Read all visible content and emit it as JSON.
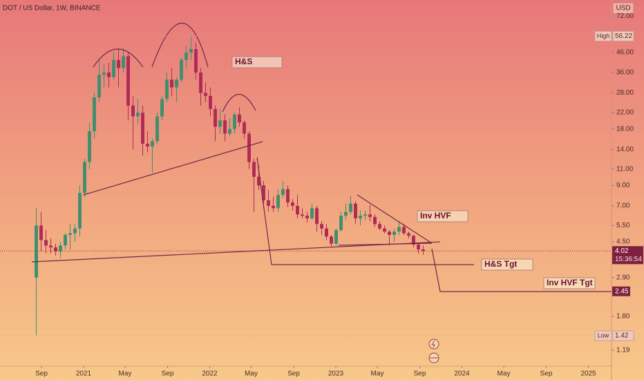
{
  "chart_data": {
    "type": "candlestick",
    "title": "DOT / US Dollar, 1W, BINANCE",
    "currency": "USD",
    "log_scale": true,
    "up_color": "#3f8f6e",
    "down_color": "#b02a56",
    "ylim": [
      0.977,
      87.7
    ],
    "yticks": [
      {
        "value": 72,
        "label": "72.00"
      },
      {
        "value": 46,
        "label": "46.00"
      },
      {
        "value": 36,
        "label": "36.00"
      },
      {
        "value": 28,
        "label": "28.00"
      },
      {
        "value": 22,
        "label": "22.00"
      },
      {
        "value": 18,
        "label": "18.00"
      },
      {
        "value": 14,
        "label": "14.00"
      },
      {
        "value": 11,
        "label": "11.00"
      },
      {
        "value": 9,
        "label": "9.00"
      },
      {
        "value": 7,
        "label": "7.00"
      },
      {
        "value": 5.5,
        "label": "5.50"
      },
      {
        "value": 4.5,
        "label": "4.50"
      },
      {
        "value": 2.9,
        "label": "2.90"
      },
      {
        "value": 1.8,
        "label": "1.80"
      },
      {
        "value": 1.19,
        "label": "1.19"
      }
    ],
    "xlim": [
      "2020-05-04",
      "2025-03-09"
    ],
    "xticks": [
      {
        "value": "2020-09-01",
        "label": "Sep"
      },
      {
        "value": "2021-01-01",
        "label": "2021"
      },
      {
        "value": "2021-05-01",
        "label": "May"
      },
      {
        "value": "2021-09-01",
        "label": "Sep"
      },
      {
        "value": "2022-01-01",
        "label": "2022"
      },
      {
        "value": "2022-05-01",
        "label": "May"
      },
      {
        "value": "2022-09-01",
        "label": "Sep"
      },
      {
        "value": "2023-01-01",
        "label": "2023"
      },
      {
        "value": "2023-05-01",
        "label": "May"
      },
      {
        "value": "2023-09-01",
        "label": "Sep"
      },
      {
        "value": "2024-01-01",
        "label": "2024"
      },
      {
        "value": "2024-05-01",
        "label": "May"
      },
      {
        "value": "2024-09-01",
        "label": "Sep"
      },
      {
        "value": "2025-01-01",
        "label": "2025"
      }
    ],
    "high": {
      "label": "High",
      "value": 56.22
    },
    "low": {
      "label": "Low",
      "value": 1.42
    },
    "last_price": {
      "value": 4.02,
      "label": "4.02",
      "countdown": "15:36:54"
    },
    "target_price": {
      "value": 2.45,
      "label": "2.45"
    },
    "annotations": [
      "H&S",
      "Inv HVF",
      "H&S Tgt",
      "Inv HVF Tgt"
    ],
    "x": [
      "2020-08-17",
      "2020-08-31",
      "2020-09-14",
      "2020-09-28",
      "2020-10-12",
      "2020-10-26",
      "2020-11-09",
      "2020-11-23",
      "2020-12-07",
      "2020-12-21",
      "2021-01-04",
      "2021-01-18",
      "2021-02-01",
      "2021-02-15",
      "2021-03-01",
      "2021-03-15",
      "2021-03-29",
      "2021-04-12",
      "2021-04-26",
      "2021-05-10",
      "2021-05-24",
      "2021-06-07",
      "2021-06-21",
      "2021-07-05",
      "2021-07-19",
      "2021-08-02",
      "2021-08-16",
      "2021-08-30",
      "2021-09-13",
      "2021-09-27",
      "2021-10-11",
      "2021-10-25",
      "2021-11-08",
      "2021-11-22",
      "2021-12-06",
      "2021-12-20",
      "2022-01-03",
      "2022-01-17",
      "2022-01-31",
      "2022-02-14",
      "2022-02-28",
      "2022-03-14",
      "2022-03-28",
      "2022-04-11",
      "2022-04-25",
      "2022-05-09",
      "2022-05-23",
      "2022-06-06",
      "2022-06-20",
      "2022-07-04",
      "2022-07-18",
      "2022-08-01",
      "2022-08-15",
      "2022-08-29",
      "2022-09-12",
      "2022-09-26",
      "2022-10-10",
      "2022-10-24",
      "2022-11-07",
      "2022-11-21",
      "2022-12-05",
      "2022-12-19",
      "2023-01-02",
      "2023-01-16",
      "2023-01-30",
      "2023-02-13",
      "2023-02-27",
      "2023-03-13",
      "2023-03-27",
      "2023-04-10",
      "2023-04-24",
      "2023-05-08",
      "2023-05-22",
      "2023-06-05",
      "2023-06-19",
      "2023-07-03",
      "2023-07-17",
      "2023-07-31",
      "2023-08-14",
      "2023-08-28",
      "2023-09-11"
    ],
    "ohlc": [
      [
        2.9,
        6.8,
        1.42,
        5.5
      ],
      [
        5.5,
        6.5,
        4.0,
        4.6
      ],
      [
        4.6,
        5.2,
        3.9,
        4.3
      ],
      [
        4.3,
        4.7,
        3.9,
        4.2
      ],
      [
        4.2,
        4.4,
        3.8,
        4.0
      ],
      [
        4.0,
        4.5,
        3.7,
        4.3
      ],
      [
        4.3,
        5.0,
        4.1,
        4.9
      ],
      [
        4.9,
        5.6,
        4.1,
        5.0
      ],
      [
        5.0,
        5.6,
        4.5,
        5.3
      ],
      [
        5.3,
        9.0,
        4.8,
        8.2
      ],
      [
        8.2,
        12.5,
        7.8,
        12.0
      ],
      [
        12.0,
        19.5,
        11.0,
        17.5
      ],
      [
        17.5,
        28.0,
        16.0,
        26.5
      ],
      [
        26.5,
        42.0,
        25.0,
        35.0
      ],
      [
        35.0,
        40.0,
        30.0,
        36.0
      ],
      [
        36.0,
        40.5,
        30.0,
        34.0
      ],
      [
        34.0,
        46.0,
        33.0,
        42.0
      ],
      [
        42.0,
        48.0,
        30.0,
        38.0
      ],
      [
        38.0,
        49.0,
        36.0,
        44.0
      ],
      [
        44.0,
        46.0,
        20.0,
        24.0
      ],
      [
        24.0,
        27.0,
        14.0,
        21.0
      ],
      [
        21.0,
        26.0,
        19.0,
        22.0
      ],
      [
        22.0,
        24.0,
        13.0,
        15.0
      ],
      [
        15.0,
        17.5,
        13.5,
        14.5
      ],
      [
        14.5,
        16.0,
        10.5,
        15.5
      ],
      [
        15.5,
        22.0,
        15.0,
        21.0
      ],
      [
        21.0,
        27.0,
        20.0,
        26.0
      ],
      [
        26.0,
        36.0,
        25.0,
        33.0
      ],
      [
        33.0,
        38.0,
        27.0,
        30.0
      ],
      [
        30.0,
        34.0,
        25.0,
        33.0
      ],
      [
        33.0,
        43.0,
        32.0,
        42.0
      ],
      [
        42.0,
        50.0,
        38.0,
        46.0
      ],
      [
        46.0,
        56.22,
        42.0,
        48.0
      ],
      [
        48.0,
        52.0,
        33.0,
        36.0
      ],
      [
        36.0,
        38.0,
        24.0,
        28.0
      ],
      [
        28.0,
        32.0,
        25.0,
        27.0
      ],
      [
        27.0,
        30.0,
        21.0,
        23.0
      ],
      [
        23.0,
        24.0,
        15.5,
        18.5
      ],
      [
        18.5,
        23.0,
        17.0,
        20.0
      ],
      [
        20.0,
        21.5,
        15.5,
        17.0
      ],
      [
        17.0,
        20.5,
        16.5,
        18.0
      ],
      [
        18.0,
        22.0,
        17.0,
        21.5
      ],
      [
        21.5,
        23.5,
        18.5,
        19.5
      ],
      [
        19.5,
        20.0,
        16.0,
        17.0
      ],
      [
        17.0,
        17.5,
        11.0,
        12.0
      ],
      [
        12.0,
        12.5,
        6.5,
        10.0
      ],
      [
        10.0,
        11.5,
        8.5,
        9.0
      ],
      [
        9.0,
        9.5,
        6.8,
        7.5
      ],
      [
        7.5,
        8.5,
        6.5,
        7.0
      ],
      [
        7.0,
        7.8,
        6.5,
        6.8
      ],
      [
        6.8,
        8.5,
        6.5,
        8.0
      ],
      [
        8.0,
        9.5,
        7.7,
        8.6
      ],
      [
        8.6,
        9.0,
        6.9,
        7.3
      ],
      [
        7.3,
        7.6,
        6.6,
        7.0
      ],
      [
        7.0,
        8.0,
        6.0,
        6.3
      ],
      [
        6.3,
        6.8,
        6.0,
        6.2
      ],
      [
        6.2,
        6.5,
        5.7,
        6.0
      ],
      [
        6.0,
        7.2,
        5.9,
        6.8
      ],
      [
        6.8,
        7.0,
        5.1,
        5.6
      ],
      [
        5.6,
        5.8,
        4.9,
        5.3
      ],
      [
        5.3,
        5.6,
        4.6,
        4.8
      ],
      [
        4.8,
        4.9,
        4.25,
        4.4
      ],
      [
        4.4,
        5.3,
        4.3,
        5.2
      ],
      [
        5.2,
        6.5,
        5.1,
        6.2
      ],
      [
        6.2,
        7.2,
        5.9,
        6.5
      ],
      [
        6.5,
        7.9,
        6.3,
        7.2
      ],
      [
        7.2,
        7.4,
        5.6,
        6.0
      ],
      [
        6.0,
        6.6,
        5.5,
        6.2
      ],
      [
        6.2,
        6.6,
        5.9,
        6.3
      ],
      [
        6.3,
        7.1,
        5.8,
        6.1
      ],
      [
        6.1,
        6.3,
        5.4,
        5.6
      ],
      [
        5.6,
        5.8,
        5.2,
        5.3
      ],
      [
        5.3,
        5.5,
        5.0,
        5.1
      ],
      [
        5.1,
        5.2,
        4.3,
        4.9
      ],
      [
        4.9,
        5.3,
        4.5,
        5.1
      ],
      [
        5.1,
        5.8,
        4.9,
        5.4
      ],
      [
        5.4,
        5.6,
        4.9,
        5.0
      ],
      [
        5.0,
        5.1,
        4.7,
        4.85
      ],
      [
        4.85,
        4.9,
        4.2,
        4.35
      ],
      [
        4.35,
        4.45,
        3.9,
        4.1
      ],
      [
        4.1,
        4.3,
        3.85,
        4.02
      ]
    ]
  }
}
